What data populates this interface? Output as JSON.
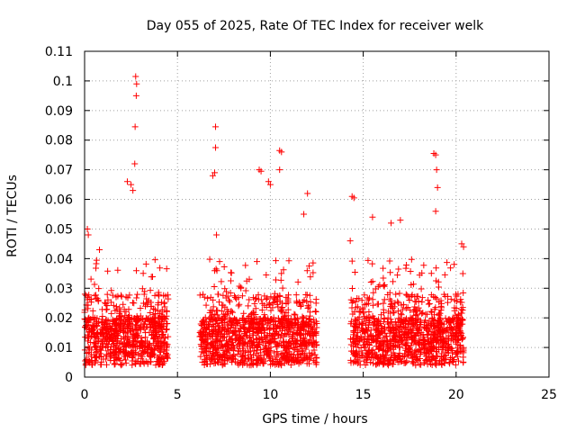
{
  "chart_data": {
    "type": "scatter",
    "title": "Day 055 of 2025, Rate Of TEC Index for receiver welk",
    "xlabel": "GPS time / hours",
    "ylabel": "ROTI / TECUs",
    "xlim": [
      0,
      25
    ],
    "ylim": [
      0,
      0.11
    ],
    "xticks": [
      "0",
      "5",
      "10",
      "15",
      "20",
      "25"
    ],
    "yticks": [
      "0",
      "0.01",
      "0.02",
      "0.03",
      "0.04",
      "0.05",
      "0.06",
      "0.07",
      "0.08",
      "0.09",
      "0.1",
      "0.11"
    ],
    "grid": true,
    "marker": "plus",
    "color": "#ff0000",
    "observed_windows_hours": [
      [
        0.0,
        4.5
      ],
      [
        6.2,
        12.5
      ],
      [
        14.3,
        20.4
      ]
    ],
    "notable_points": [
      {
        "x": 0.15,
        "y": 0.05
      },
      {
        "x": 0.2,
        "y": 0.048
      },
      {
        "x": 0.8,
        "y": 0.043
      },
      {
        "x": 2.3,
        "y": 0.066
      },
      {
        "x": 2.5,
        "y": 0.065
      },
      {
        "x": 2.6,
        "y": 0.063
      },
      {
        "x": 2.7,
        "y": 0.072
      },
      {
        "x": 2.75,
        "y": 0.1015
      },
      {
        "x": 2.8,
        "y": 0.099
      },
      {
        "x": 2.78,
        "y": 0.095
      },
      {
        "x": 2.72,
        "y": 0.0845
      },
      {
        "x": 6.9,
        "y": 0.068
      },
      {
        "x": 7.0,
        "y": 0.069
      },
      {
        "x": 7.05,
        "y": 0.0845
      },
      {
        "x": 7.05,
        "y": 0.0775
      },
      {
        "x": 7.1,
        "y": 0.048
      },
      {
        "x": 9.4,
        "y": 0.07
      },
      {
        "x": 9.5,
        "y": 0.0695
      },
      {
        "x": 9.9,
        "y": 0.066
      },
      {
        "x": 10.0,
        "y": 0.065
      },
      {
        "x": 10.5,
        "y": 0.0765
      },
      {
        "x": 10.6,
        "y": 0.076
      },
      {
        "x": 10.5,
        "y": 0.07
      },
      {
        "x": 11.8,
        "y": 0.055
      },
      {
        "x": 12.0,
        "y": 0.062
      },
      {
        "x": 14.4,
        "y": 0.061
      },
      {
        "x": 14.5,
        "y": 0.0605
      },
      {
        "x": 14.3,
        "y": 0.046
      },
      {
        "x": 15.5,
        "y": 0.054
      },
      {
        "x": 16.5,
        "y": 0.052
      },
      {
        "x": 17.0,
        "y": 0.053
      },
      {
        "x": 18.8,
        "y": 0.0755
      },
      {
        "x": 18.9,
        "y": 0.075
      },
      {
        "x": 18.95,
        "y": 0.07
      },
      {
        "x": 19.0,
        "y": 0.064
      },
      {
        "x": 18.9,
        "y": 0.056
      },
      {
        "x": 20.3,
        "y": 0.045
      },
      {
        "x": 20.4,
        "y": 0.044
      }
    ]
  }
}
